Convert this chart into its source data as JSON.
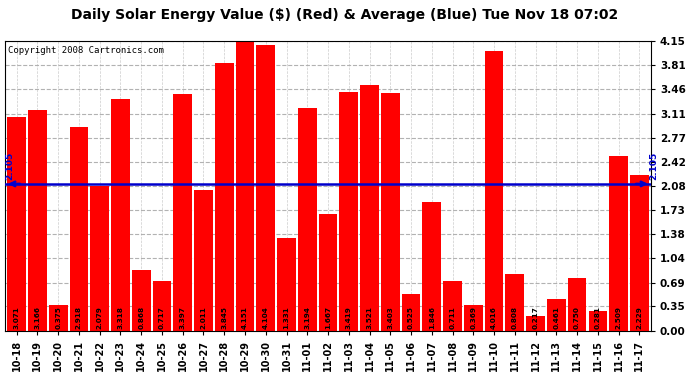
{
  "title": "Daily Solar Energy Value ($) (Red) & Average (Blue) Tue Nov 18 07:02",
  "copyright": "Copyright 2008 Cartronics.com",
  "categories": [
    "10-18",
    "10-19",
    "10-20",
    "10-21",
    "10-22",
    "10-23",
    "10-24",
    "10-25",
    "10-26",
    "10-27",
    "10-28",
    "10-29",
    "10-30",
    "10-31",
    "11-01",
    "11-02",
    "11-03",
    "11-04",
    "11-05",
    "11-06",
    "11-07",
    "11-08",
    "11-09",
    "11-10",
    "11-11",
    "11-12",
    "11-13",
    "11-14",
    "11-15",
    "11-16",
    "11-17"
  ],
  "values": [
    3.071,
    3.166,
    0.375,
    2.918,
    2.079,
    3.318,
    0.868,
    0.717,
    3.397,
    2.011,
    3.845,
    4.151,
    4.104,
    1.331,
    3.194,
    1.667,
    3.419,
    3.521,
    3.403,
    0.525,
    1.846,
    0.711,
    0.369,
    4.016,
    0.808,
    0.217,
    0.461,
    0.75,
    0.281,
    2.509,
    2.229
  ],
  "average": 2.105,
  "bar_color": "#ff0000",
  "avg_line_color": "#0000cc",
  "background_color": "#ffffff",
  "plot_bg_color": "#ffffff",
  "grid_color": "#aaaaaa",
  "ylim": [
    0.0,
    4.15
  ],
  "yticks": [
    0.0,
    0.35,
    0.69,
    1.04,
    1.38,
    1.73,
    2.08,
    2.42,
    2.77,
    3.11,
    3.46,
    3.81,
    4.15
  ],
  "title_fontsize": 10,
  "copyright_fontsize": 6.5,
  "bar_label_fontsize": 5.2,
  "avg_label": "2.105",
  "avg_label_fontsize": 6.5
}
